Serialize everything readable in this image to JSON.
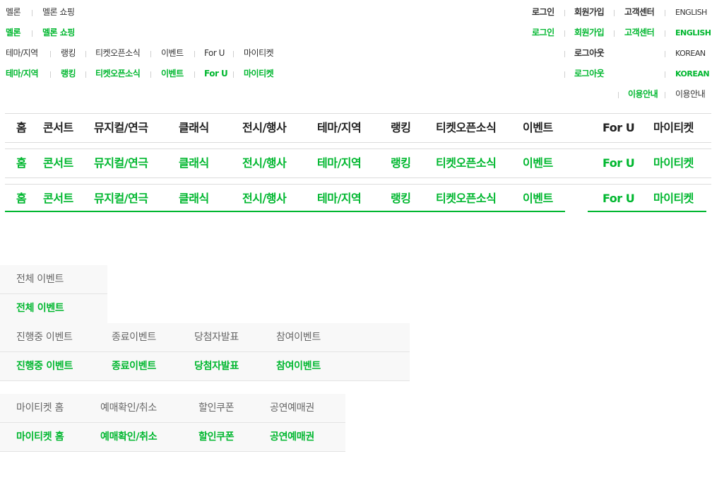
{
  "util_left": {
    "melon": "멜론",
    "melon_shopping": "멜론 쇼핑"
  },
  "cat_links": [
    "테마/지역",
    "랭킹",
    "티켓오픈소식",
    "이벤트",
    "For U",
    "마이티켓"
  ],
  "util_right": {
    "login": "로그인",
    "join": "회원가입",
    "cs": "고객센터",
    "english": "ENGLISH",
    "logout": "로그아웃",
    "korean": "KOREAN",
    "guide": "이용안내"
  },
  "gnb": [
    "홈",
    "콘서트",
    "뮤지컬/연극",
    "클래식",
    "전시/행사",
    "테마/지역",
    "랭킹",
    "티켓오픈소식",
    "이벤트",
    "For U",
    "마이티켓"
  ],
  "event_tabs": {
    "all": "전체 이벤트",
    "items": [
      "진행중 이벤트",
      "종료이벤트",
      "당첨자발표",
      "참여이벤트"
    ]
  },
  "myticket_tabs": [
    "마이티켓 홈",
    "예매확인/취소",
    "할인쿠폰",
    "공연예매권"
  ],
  "colors": {
    "accent": "#00b72f",
    "text": "#333333"
  }
}
